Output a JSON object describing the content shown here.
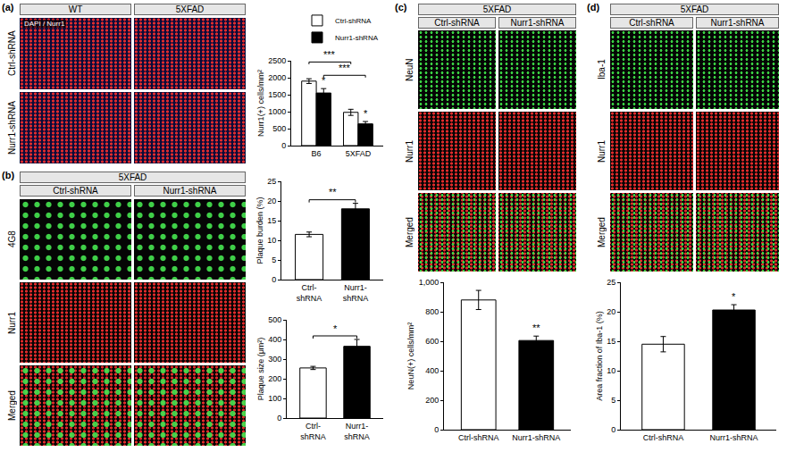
{
  "figure": {
    "panels": [
      {
        "label": "(a)",
        "headers": [
          "WT",
          "5XFAD"
        ],
        "rows": [
          "Ctrl-shRNA",
          "Nurr1-shRNA"
        ],
        "image_label": "DAPI / Nurr1"
      },
      {
        "label": "(b)",
        "group": "5XFAD",
        "headers": [
          "Ctrl-shRNA",
          "Nurr1-shRNA"
        ],
        "rows": [
          "4G8",
          "Nurr1",
          "Merged"
        ]
      },
      {
        "label": "(c)",
        "group": "5XFAD",
        "headers": [
          "Ctrl-shRNA",
          "Nurr1-shRNA"
        ],
        "rows": [
          "NeuN",
          "Nurr1",
          "Merged"
        ]
      },
      {
        "label": "(d)",
        "group": "5XFAD",
        "headers": [
          "Ctrl-shRNA",
          "Nurr1-shRNA"
        ],
        "rows": [
          "Iba-1",
          "Nurr1",
          "Merged"
        ]
      }
    ]
  },
  "chart_data": [
    {
      "type": "bar",
      "ylabel": "Nurr1(+) cells/mm²",
      "categories": [
        "B6",
        "5XFAD"
      ],
      "series": [
        {
          "name": "Ctrl-shRNA",
          "color": "#ffffff",
          "values": [
            1900,
            980
          ],
          "errors": [
            70,
            90
          ]
        },
        {
          "name": "Nurr1-shRNA",
          "color": "#000000",
          "values": [
            1550,
            640
          ],
          "errors": [
            130,
            70
          ]
        }
      ],
      "ylim": [
        0,
        2500
      ],
      "yticks": [
        0,
        500,
        1000,
        1500,
        2000,
        2500
      ],
      "legend": "top right",
      "annotations": [
        {
          "text": "*",
          "at": [
            0,
            1
          ]
        },
        {
          "text": "*",
          "at": [
            1,
            1
          ]
        },
        {
          "text": "***",
          "between": [
            [
              0,
              1
            ],
            [
              1,
              1
            ]
          ]
        },
        {
          "text": "***",
          "between": [
            [
              0,
              0
            ],
            [
              1,
              0
            ]
          ]
        }
      ]
    },
    {
      "type": "bar",
      "ylabel": "Plaque burden (%)",
      "categories": [
        "Ctrl-shRNA",
        "Nurr1-shRNA"
      ],
      "values": [
        11.5,
        18
      ],
      "errors": [
        0.6,
        1.4
      ],
      "colors": [
        "#ffffff",
        "#000000"
      ],
      "ylim": [
        0,
        25
      ],
      "yticks": [
        0,
        5,
        10,
        15,
        20,
        25
      ],
      "annotations": [
        {
          "text": "**",
          "between": [
            0,
            1
          ]
        }
      ]
    },
    {
      "type": "bar",
      "ylabel": "Plaque size (μm²)",
      "categories": [
        "Ctrl-shRNA",
        "Nurr1-shRNA"
      ],
      "values": [
        255,
        365
      ],
      "errors": [
        8,
        35
      ],
      "colors": [
        "#ffffff",
        "#000000"
      ],
      "ylim": [
        0,
        500
      ],
      "yticks": [
        0,
        100,
        200,
        300,
        400,
        500
      ],
      "annotations": [
        {
          "text": "*",
          "between": [
            0,
            1
          ]
        }
      ]
    },
    {
      "type": "bar",
      "ylabel": "NeuN(+) cells/mm²",
      "categories": [
        "Ctrl-shRNA",
        "Nurr1-shRNA"
      ],
      "values": [
        880,
        605
      ],
      "errors": [
        65,
        30
      ],
      "colors": [
        "#ffffff",
        "#000000"
      ],
      "ylim": [
        0,
        1000
      ],
      "yticks": [
        0,
        200,
        400,
        600,
        800,
        {
          "value": 1000,
          "label": "1,000"
        }
      ],
      "annotations": [
        {
          "text": "**",
          "at": 1
        }
      ]
    },
    {
      "type": "bar",
      "ylabel": "Area fraction of Iba-1 (%)",
      "categories": [
        "Ctrl-shRNA",
        "Nurr1-shRNA"
      ],
      "values": [
        14.5,
        20.3
      ],
      "errors": [
        1.3,
        0.9
      ],
      "colors": [
        "#ffffff",
        "#000000"
      ],
      "ylim": [
        0,
        25
      ],
      "yticks": [
        0,
        5,
        10,
        15,
        20,
        25
      ],
      "annotations": [
        {
          "text": "*",
          "at": 1
        }
      ]
    }
  ]
}
